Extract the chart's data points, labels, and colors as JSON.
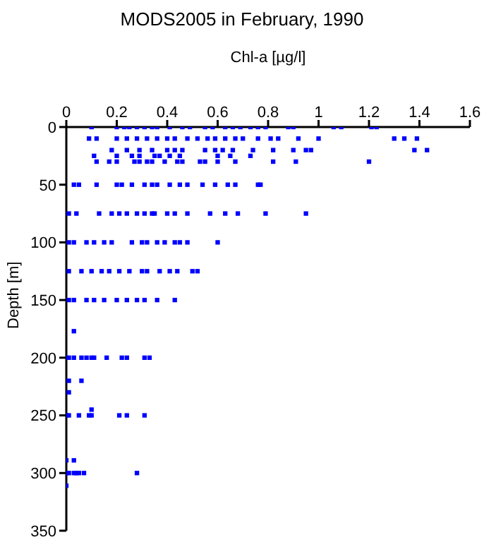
{
  "chart_data": {
    "type": "scatter",
    "title": "MODS2005 in February, 1990",
    "xlabel": "Chl-a [µg/l]",
    "ylabel": "Depth [m]",
    "xlim": [
      0,
      1.6
    ],
    "xticks": [
      0,
      0.2,
      0.4,
      0.6,
      0.8,
      1,
      1.2,
      1.4,
      1.6
    ],
    "ylim": [
      350,
      0
    ],
    "yticks": [
      0,
      50,
      100,
      150,
      200,
      250,
      300,
      350
    ],
    "grid": false,
    "legend": false,
    "marker": "square",
    "color": "#0000ff",
    "x": [
      0.1,
      0.2,
      0.23,
      0.25,
      0.28,
      0.31,
      0.34,
      0.36,
      0.41,
      0.46,
      0.49,
      0.55,
      0.58,
      0.63,
      0.66,
      0.69,
      0.73,
      0.76,
      0.79,
      0.88,
      0.9,
      1.06,
      1.09,
      1.21,
      1.23,
      0.09,
      0.12,
      0.2,
      0.24,
      0.28,
      0.32,
      0.36,
      0.4,
      0.43,
      0.48,
      0.52,
      0.56,
      0.59,
      0.63,
      0.67,
      0.7,
      0.76,
      0.81,
      0.84,
      0.92,
      1,
      1.3,
      1.34,
      1.39,
      0.18,
      0.24,
      0.29,
      0.34,
      0.4,
      0.43,
      0.46,
      0.55,
      0.59,
      0.62,
      0.66,
      0.74,
      0.82,
      0.9,
      0.95,
      0.97,
      1.38,
      1.43,
      0.11,
      0.2,
      0.26,
      0.29,
      0.35,
      0.37,
      0.41,
      0.45,
      0.6,
      0.65,
      0.73,
      0.12,
      0.17,
      0.2,
      0.27,
      0.29,
      0.32,
      0.34,
      0.39,
      0.44,
      0.46,
      0.53,
      0.55,
      0.6,
      0.67,
      0.82,
      0.91,
      1.2,
      0.03,
      0.05,
      0.12,
      0.2,
      0.22,
      0.26,
      0.31,
      0.34,
      0.36,
      0.41,
      0.45,
      0.48,
      0.54,
      0.59,
      0.64,
      0.67,
      0.76,
      0.77,
      0.01,
      0.04,
      0.13,
      0.18,
      0.21,
      0.24,
      0.28,
      0.31,
      0.34,
      0.35,
      0.4,
      0.43,
      0.48,
      0.57,
      0.63,
      0.68,
      0.79,
      0.95,
      0.01,
      0.03,
      0.08,
      0.11,
      0.15,
      0.18,
      0.26,
      0.3,
      0.32,
      0.36,
      0.39,
      0.43,
      0.45,
      0.48,
      0.6,
      0.01,
      0.06,
      0.1,
      0.14,
      0.17,
      0.21,
      0.25,
      0.3,
      0.32,
      0.37,
      0.41,
      0.44,
      0.5,
      0.52,
      0.01,
      0.03,
      0.08,
      0.11,
      0.15,
      0.2,
      0.24,
      0.28,
      0.31,
      0.36,
      0.43,
      0.03,
      0,
      0.01,
      0.03,
      0.06,
      0.08,
      0.1,
      0.11,
      0.16,
      0.22,
      0.24,
      0.31,
      0.33,
      0.01,
      0.06,
      0.01,
      0,
      0.01,
      0.05,
      0.09,
      0.1,
      0.21,
      0.24,
      0.31,
      0.1,
      0,
      0.01,
      0.03,
      0.04,
      0.05,
      0.07,
      0.28,
      0,
      0.03,
      0
    ],
    "values": [
      0,
      0,
      0,
      0,
      0,
      0,
      0,
      0,
      0,
      0,
      0,
      0,
      0,
      0,
      0,
      0,
      0,
      0,
      0,
      0,
      0,
      0,
      0,
      0,
      0,
      10,
      10,
      10,
      10,
      10,
      10,
      10,
      10,
      10,
      10,
      10,
      10,
      10,
      10,
      10,
      10,
      10,
      10,
      10,
      10,
      10,
      10,
      10,
      10,
      20,
      20,
      20,
      20,
      20,
      20,
      20,
      20,
      20,
      20,
      20,
      20,
      20,
      20,
      20,
      20,
      20,
      20,
      25,
      25,
      25,
      25,
      25,
      25,
      25,
      25,
      25,
      25,
      25,
      30,
      30,
      30,
      30,
      30,
      30,
      30,
      30,
      30,
      30,
      30,
      30,
      30,
      30,
      30,
      30,
      30,
      50,
      50,
      50,
      50,
      50,
      50,
      50,
      50,
      50,
      50,
      50,
      50,
      50,
      50,
      50,
      50,
      50,
      50,
      75,
      75,
      75,
      75,
      75,
      75,
      75,
      75,
      75,
      75,
      75,
      75,
      75,
      75,
      75,
      75,
      75,
      75,
      100,
      100,
      100,
      100,
      100,
      100,
      100,
      100,
      100,
      100,
      100,
      100,
      100,
      100,
      100,
      125,
      125,
      125,
      125,
      125,
      125,
      125,
      125,
      125,
      125,
      125,
      125,
      125,
      125,
      150,
      150,
      150,
      150,
      150,
      150,
      150,
      150,
      150,
      150,
      150,
      177,
      200,
      200,
      200,
      200,
      200,
      200,
      200,
      200,
      200,
      200,
      200,
      200,
      220,
      220,
      230,
      250,
      250,
      250,
      250,
      250,
      250,
      250,
      250,
      245,
      300,
      300,
      300,
      300,
      300,
      300,
      300,
      289,
      289,
      311
    ]
  }
}
